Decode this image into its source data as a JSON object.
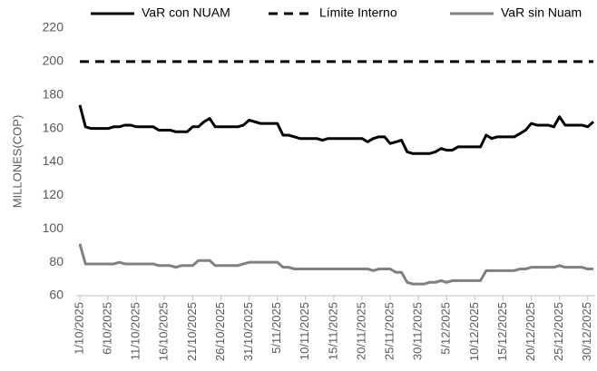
{
  "chart_data": {
    "type": "line",
    "y_label": "MILLONES(COP)",
    "legend": "top",
    "categories": [
      "1/10/2025",
      null,
      null,
      null,
      null,
      "6/10/2025",
      null,
      null,
      null,
      null,
      "11/10/2025",
      null,
      null,
      null,
      null,
      "16/10/2025",
      null,
      null,
      null,
      null,
      "21/10/2025",
      null,
      null,
      null,
      null,
      "26/10/2025",
      null,
      null,
      null,
      null,
      "31/10/2025",
      null,
      null,
      null,
      null,
      "5/11/2025",
      null,
      null,
      null,
      null,
      "10/11/2025",
      null,
      null,
      null,
      null,
      "15/11/2025",
      null,
      null,
      null,
      null,
      "20/11/2025",
      null,
      null,
      null,
      null,
      "25/11/2025",
      null,
      null,
      null,
      null,
      "30/11/2025",
      null,
      null,
      null,
      null,
      "5/12/2025",
      null,
      null,
      null,
      null,
      "10/12/2025",
      null,
      null,
      null,
      null,
      "15/12/2025",
      null,
      null,
      null,
      null,
      "20/12/2025",
      null,
      null,
      null,
      null,
      "25/12/2025",
      null,
      null,
      null,
      null,
      "30/12/2025",
      null
    ],
    "ylim": [
      60,
      220
    ],
    "yticks": [
      60,
      80,
      100,
      120,
      140,
      160,
      180,
      200,
      220
    ],
    "series": [
      {
        "name": "VaR con NUAM",
        "color": "#000000",
        "style": "solid",
        "values": [
          174,
          161,
          160,
          160,
          160,
          160,
          161,
          161,
          162,
          162,
          161,
          161,
          161,
          161,
          159,
          159,
          159,
          158,
          158,
          158,
          161,
          161,
          164,
          166,
          161,
          161,
          161,
          161,
          161,
          162,
          165,
          164,
          163,
          163,
          163,
          163,
          156,
          156,
          155,
          154,
          154,
          154,
          154,
          153,
          154,
          154,
          154,
          154,
          154,
          154,
          154,
          152,
          154,
          155,
          155,
          151,
          152,
          153,
          146,
          145,
          145,
          145,
          145,
          146,
          148,
          147,
          147,
          149,
          149,
          149,
          149,
          149,
          156,
          154,
          155,
          155,
          155,
          155,
          157,
          159,
          163,
          162,
          162,
          162,
          161,
          167,
          162,
          162,
          162,
          162,
          161,
          164
        ]
      },
      {
        "name": "Límite Interno",
        "color": "#000000",
        "style": "dashed",
        "values": [
          200,
          200,
          200,
          200,
          200,
          200,
          200,
          200,
          200,
          200,
          200,
          200,
          200,
          200,
          200,
          200,
          200,
          200,
          200,
          200,
          200,
          200,
          200,
          200,
          200,
          200,
          200,
          200,
          200,
          200,
          200,
          200,
          200,
          200,
          200,
          200,
          200,
          200,
          200,
          200,
          200,
          200,
          200,
          200,
          200,
          200,
          200,
          200,
          200,
          200,
          200,
          200,
          200,
          200,
          200,
          200,
          200,
          200,
          200,
          200,
          200,
          200,
          200,
          200,
          200,
          200,
          200,
          200,
          200,
          200,
          200,
          200,
          200,
          200,
          200,
          200,
          200,
          200,
          200,
          200,
          200,
          200,
          200,
          200,
          200,
          200,
          200,
          200,
          200,
          200,
          200,
          200
        ]
      },
      {
        "name": "VaR sin Nuam",
        "color": "#808080",
        "style": "solid",
        "values": [
          91,
          79,
          79,
          79,
          79,
          79,
          79,
          80,
          79,
          79,
          79,
          79,
          79,
          79,
          78,
          78,
          78,
          77,
          78,
          78,
          78,
          81,
          81,
          81,
          78,
          78,
          78,
          78,
          78,
          79,
          80,
          80,
          80,
          80,
          80,
          80,
          77,
          77,
          76,
          76,
          76,
          76,
          76,
          76,
          76,
          76,
          76,
          76,
          76,
          76,
          76,
          76,
          75,
          76,
          76,
          76,
          74,
          74,
          68,
          67,
          67,
          67,
          68,
          68,
          69,
          68,
          69,
          69,
          69,
          69,
          69,
          69,
          75,
          75,
          75,
          75,
          75,
          75,
          76,
          76,
          77,
          77,
          77,
          77,
          77,
          78,
          77,
          77,
          77,
          77,
          76,
          76
        ]
      }
    ]
  }
}
